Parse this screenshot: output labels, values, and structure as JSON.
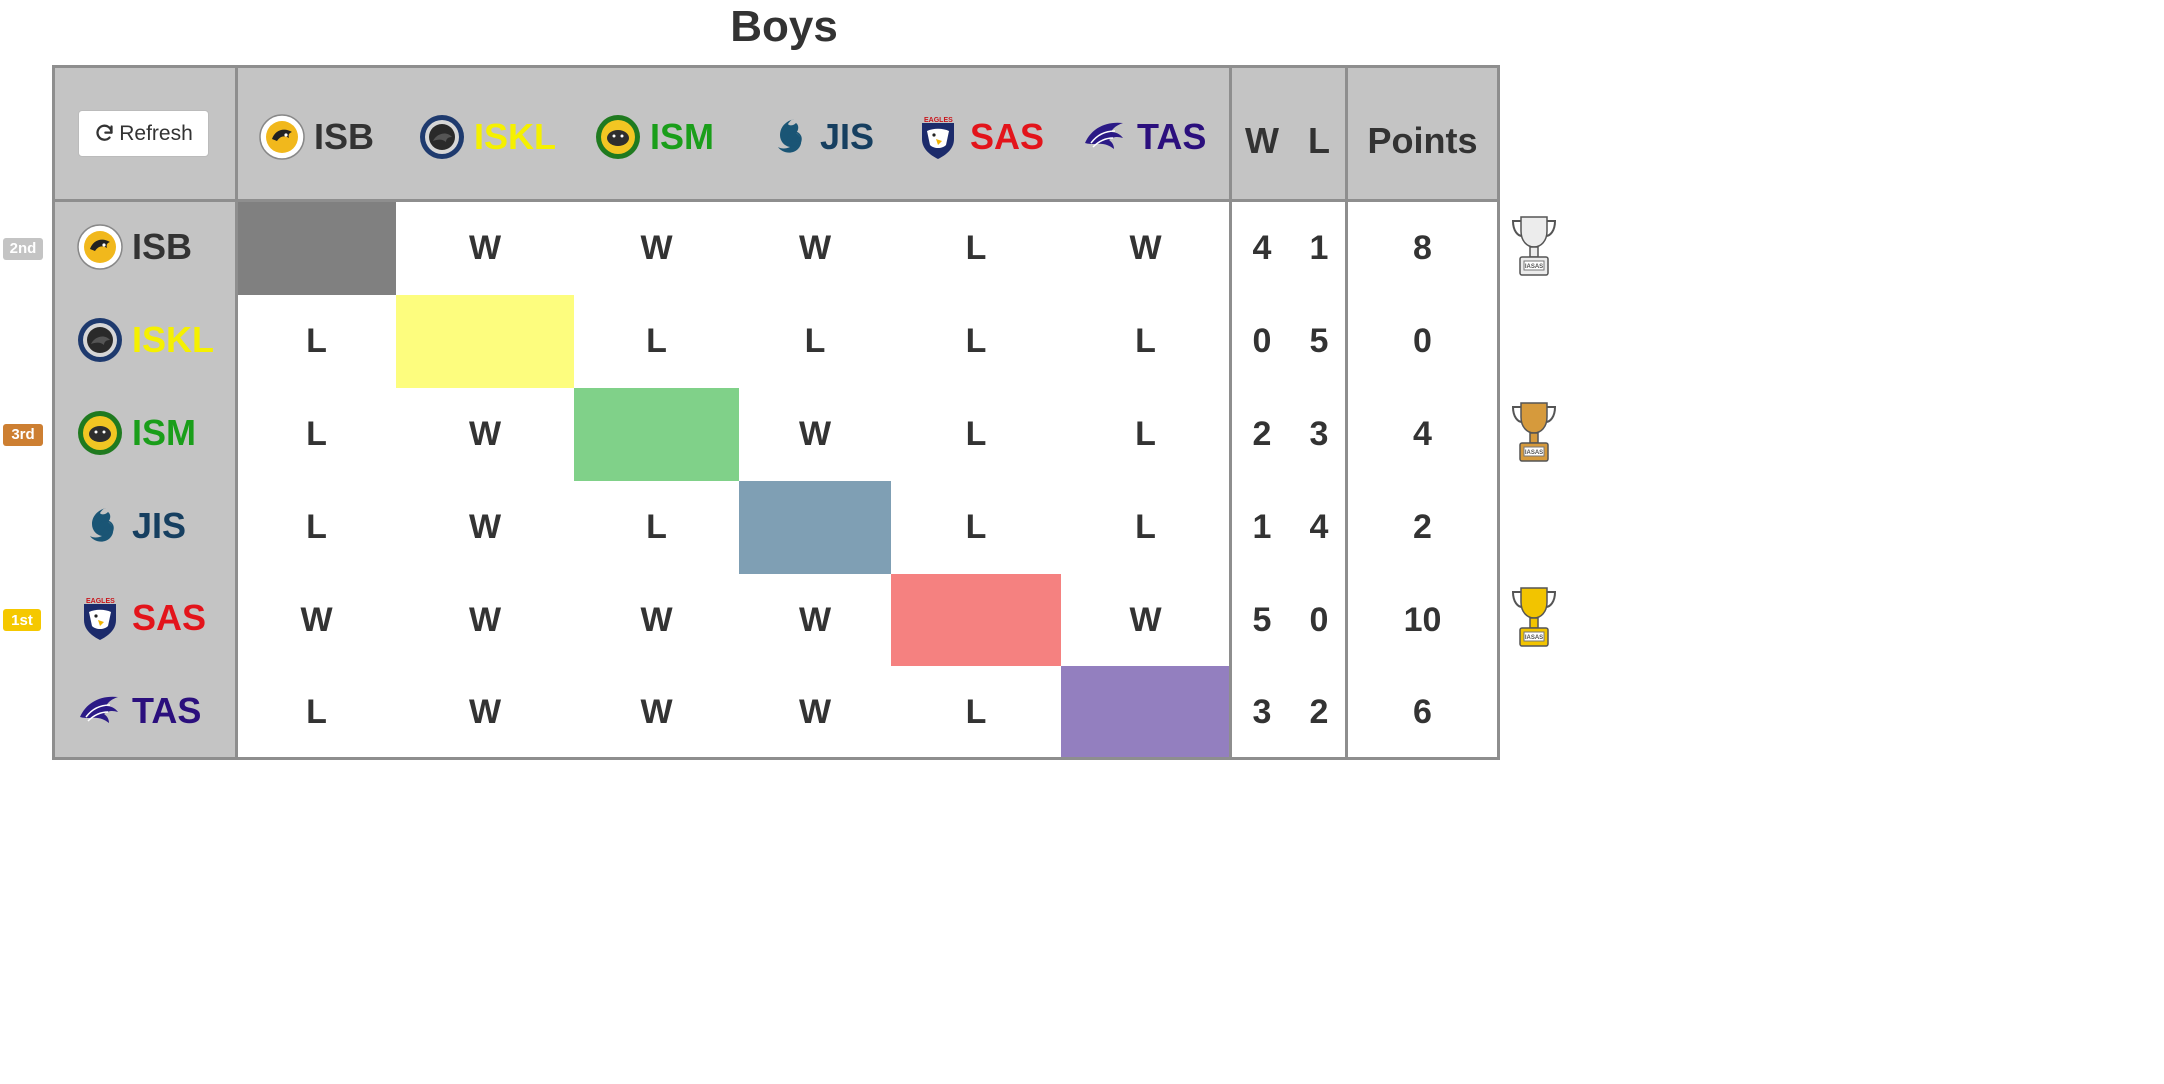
{
  "title": "Boys",
  "refresh_label": "Refresh",
  "teams": [
    {
      "abbr": "ISB",
      "color": "#333333"
    },
    {
      "abbr": "ISKL",
      "color": "#f5f000"
    },
    {
      "abbr": "ISM",
      "color": "#1a9e1a"
    },
    {
      "abbr": "JIS",
      "color": "#163f60"
    },
    {
      "abbr": "SAS",
      "color": "#e3141b"
    },
    {
      "abbr": "TAS",
      "color": "#2b0f7d"
    }
  ],
  "diagonal_colors": [
    "#808080",
    "#fdfd7e",
    "#80d189",
    "#7f9fb4",
    "#f58180",
    "#937fbf"
  ],
  "headers": {
    "w": "W",
    "l": "L",
    "points": "Points"
  },
  "rows": [
    {
      "team": "ISB",
      "rank": "2nd",
      "results": [
        "",
        "W",
        "W",
        "W",
        "L",
        "W"
      ],
      "w": "4",
      "l": "1",
      "points": "8",
      "trophy": "silver"
    },
    {
      "team": "ISKL",
      "rank": "",
      "results": [
        "L",
        "",
        "L",
        "L",
        "L",
        "L"
      ],
      "w": "0",
      "l": "5",
      "points": "0",
      "trophy": ""
    },
    {
      "team": "ISM",
      "rank": "3rd",
      "results": [
        "L",
        "W",
        "",
        "W",
        "L",
        "L"
      ],
      "w": "2",
      "l": "3",
      "points": "4",
      "trophy": "bronze"
    },
    {
      "team": "JIS",
      "rank": "",
      "results": [
        "L",
        "W",
        "L",
        "",
        "L",
        "L"
      ],
      "w": "1",
      "l": "4",
      "points": "2",
      "trophy": ""
    },
    {
      "team": "SAS",
      "rank": "1st",
      "results": [
        "W",
        "W",
        "W",
        "W",
        "",
        "W"
      ],
      "w": "5",
      "l": "0",
      "points": "10",
      "trophy": "gold"
    },
    {
      "team": "TAS",
      "rank": "",
      "results": [
        "L",
        "W",
        "W",
        "W",
        "L",
        ""
      ],
      "w": "3",
      "l": "2",
      "points": "6",
      "trophy": ""
    }
  ],
  "rank_colors": {
    "1st": "#f5c800",
    "2nd": "#c4c4c4",
    "3rd": "#cd7f32"
  },
  "trophy_colors": {
    "gold": "#f2c400",
    "silver": "#ececec",
    "bronze": "#d69a3c"
  },
  "trophy_plate_text": "IASAS"
}
